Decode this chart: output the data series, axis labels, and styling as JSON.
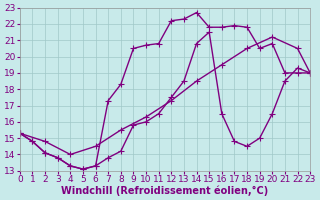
{
  "bg_color": "#c8eaea",
  "line_color": "#800080",
  "grid_color": "#a0c8c8",
  "xlabel": "Windchill (Refroidissement éolien,°C)",
  "xlim": [
    0,
    23
  ],
  "ylim": [
    13,
    23
  ],
  "xticks": [
    0,
    1,
    2,
    3,
    4,
    5,
    6,
    7,
    8,
    9,
    10,
    11,
    12,
    13,
    14,
    15,
    16,
    17,
    18,
    19,
    20,
    21,
    22,
    23
  ],
  "yticks": [
    13,
    14,
    15,
    16,
    17,
    18,
    19,
    20,
    21,
    22,
    23
  ],
  "series1_x": [
    0,
    1,
    2,
    3,
    4,
    5,
    6,
    7,
    8,
    9,
    10,
    11,
    12,
    13,
    14,
    15,
    16,
    17,
    18,
    19,
    20,
    21,
    22,
    23
  ],
  "series1_y": [
    15.3,
    14.8,
    14.1,
    13.8,
    13.3,
    13.1,
    13.3,
    17.3,
    18.3,
    20.5,
    20.7,
    20.8,
    22.2,
    22.3,
    22.7,
    21.8,
    21.8,
    21.9,
    21.8,
    20.5,
    20.8,
    19.0,
    19.0,
    19.0
  ],
  "series2_x": [
    0,
    1,
    2,
    3,
    4,
    5,
    6,
    7,
    8,
    9,
    10,
    11,
    12,
    13,
    14,
    15,
    16,
    17,
    18,
    19,
    20,
    21,
    22,
    23
  ],
  "series2_y": [
    15.3,
    14.8,
    14.1,
    13.8,
    13.3,
    13.1,
    13.3,
    13.8,
    14.2,
    15.8,
    16.0,
    16.5,
    17.5,
    18.5,
    20.8,
    21.5,
    16.5,
    14.8,
    14.5,
    15.0,
    16.5,
    18.5,
    19.3,
    19.0
  ],
  "series3_x": [
    0,
    2,
    4,
    6,
    8,
    10,
    12,
    14,
    16,
    18,
    20,
    22,
    23
  ],
  "series3_y": [
    15.3,
    14.8,
    14.0,
    14.5,
    15.5,
    16.3,
    17.3,
    18.5,
    19.5,
    20.5,
    21.2,
    20.5,
    19.0
  ],
  "lw": 1.0,
  "ms": 2.5,
  "tick_fs": 6.5,
  "label_fs": 7
}
